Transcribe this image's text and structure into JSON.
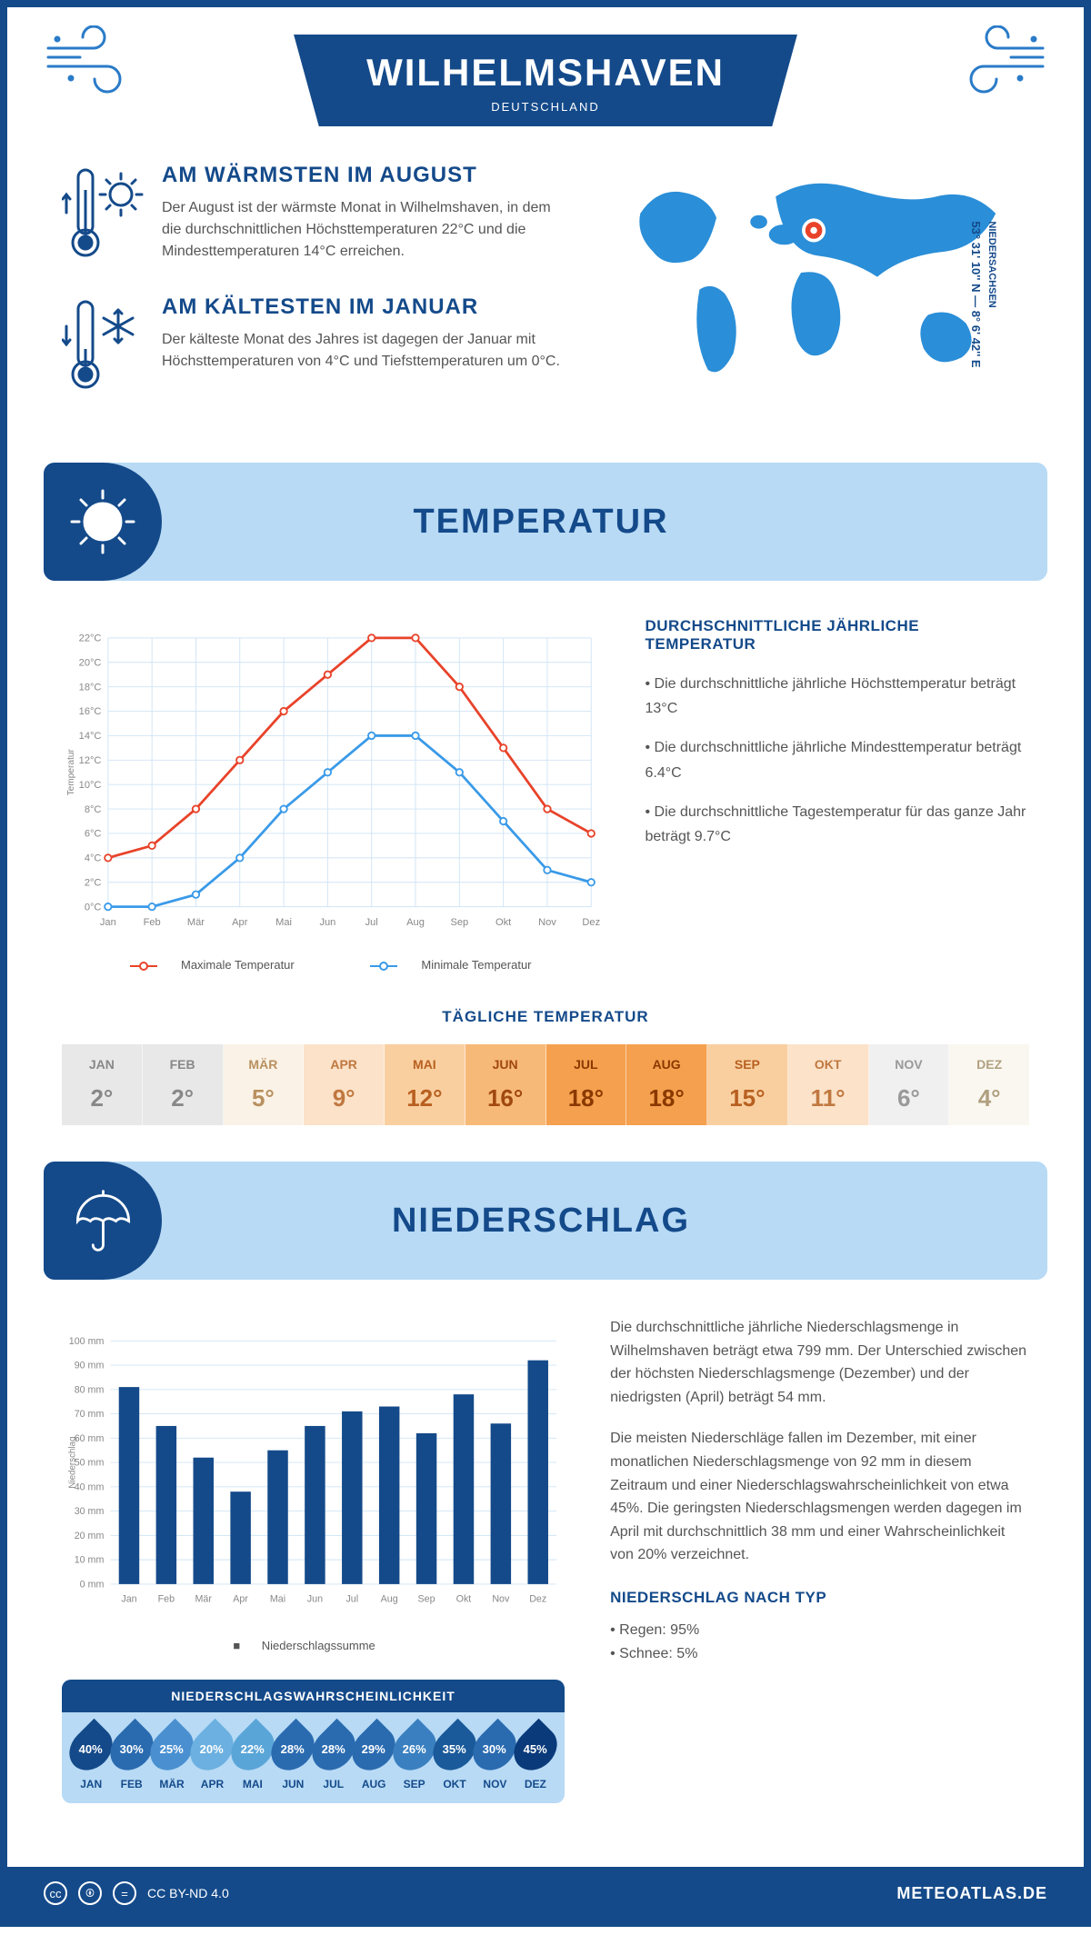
{
  "header": {
    "title": "WILHELMSHAVEN",
    "subtitle": "DEUTSCHLAND"
  },
  "location": {
    "region": "NIEDERSACHSEN",
    "coords": "53° 31' 10'' N — 8° 6' 42'' E",
    "marker_color": "#e8432a"
  },
  "facts": {
    "warm": {
      "title": "AM WÄRMSTEN IM AUGUST",
      "text": "Der August ist der wärmste Monat in Wilhelmshaven, in dem die durchschnittlichen Höchsttemperaturen 22°C und die Mindesttemperaturen 14°C erreichen."
    },
    "cold": {
      "title": "AM KÄLTESTEN IM JANUAR",
      "text": "Der kälteste Monat des Jahres ist dagegen der Januar mit Höchsttemperaturen von 4°C und Tiefsttemperaturen um 0°C."
    }
  },
  "temp_section": {
    "banner": "TEMPERATUR",
    "info_title": "DURCHSCHNITTLICHE JÄHRLICHE TEMPERATUR",
    "bullets": [
      "• Die durchschnittliche jährliche Höchsttemperatur beträgt 13°C",
      "• Die durchschnittliche jährliche Mindesttemperatur beträgt 6.4°C",
      "• Die durchschnittliche Tagestemperatur für das ganze Jahr beträgt 9.7°C"
    ],
    "chart": {
      "type": "line",
      "months": [
        "Jan",
        "Feb",
        "Mär",
        "Apr",
        "Mai",
        "Jun",
        "Jul",
        "Aug",
        "Sep",
        "Okt",
        "Nov",
        "Dez"
      ],
      "max_values": [
        4,
        5,
        8,
        12,
        16,
        19,
        22,
        22,
        18,
        13,
        8,
        6
      ],
      "min_values": [
        0,
        0,
        1,
        4,
        8,
        11,
        14,
        14,
        11,
        7,
        3,
        2
      ],
      "max_color": "#e8432a",
      "min_color": "#3a9ae8",
      "ylim": [
        0,
        22
      ],
      "ytick_step": 2,
      "y_unit": "°C",
      "y_axis_label": "Temperatur",
      "grid_color": "#d0e4f5",
      "line_width": 3,
      "marker_radius": 4,
      "legend_max": "Maximale Temperatur",
      "legend_min": "Minimale Temperatur"
    },
    "daily": {
      "title": "TÄGLICHE TEMPERATUR",
      "months": [
        "JAN",
        "FEB",
        "MÄR",
        "APR",
        "MAI",
        "JUN",
        "JUL",
        "AUG",
        "SEP",
        "OKT",
        "NOV",
        "DEZ"
      ],
      "values": [
        "2°",
        "2°",
        "5°",
        "9°",
        "12°",
        "16°",
        "18°",
        "18°",
        "15°",
        "11°",
        "6°",
        "4°"
      ],
      "cell_bg": [
        "#e8e8e8",
        "#e8e8e8",
        "#faf2e6",
        "#fbe2c9",
        "#f9cfa0",
        "#f7b977",
        "#f5a04e",
        "#f5a04e",
        "#f9cfa0",
        "#fbe2c9",
        "#f0f0f0",
        "#faf7f0"
      ],
      "cell_fg": [
        "#888",
        "#888",
        "#b89060",
        "#c07840",
        "#b86020",
        "#a04810",
        "#8a3800",
        "#8a3800",
        "#b86020",
        "#c07840",
        "#999",
        "#b0a080"
      ]
    }
  },
  "precip_section": {
    "banner": "NIEDERSCHLAG",
    "text1": "Die durchschnittliche jährliche Niederschlagsmenge in Wilhelmshaven beträgt etwa 799 mm. Der Unterschied zwischen der höchsten Niederschlagsmenge (Dezember) und der niedrigsten (April) beträgt 54 mm.",
    "text2": "Die meisten Niederschläge fallen im Dezember, mit einer monatlichen Niederschlagsmenge von 92 mm in diesem Zeitraum und einer Niederschlagswahrscheinlichkeit von etwa 45%. Die geringsten Niederschlagsmengen werden dagegen im April mit durchschnittlich 38 mm und einer Wahrscheinlichkeit von 20% verzeichnet.",
    "by_type_title": "NIEDERSCHLAG NACH TYP",
    "by_type": [
      "• Regen: 95%",
      "• Schnee: 5%"
    ],
    "chart": {
      "type": "bar",
      "months": [
        "Jan",
        "Feb",
        "Mär",
        "Apr",
        "Mai",
        "Jun",
        "Jul",
        "Aug",
        "Sep",
        "Okt",
        "Nov",
        "Dez"
      ],
      "values": [
        81,
        65,
        52,
        38,
        55,
        65,
        71,
        73,
        62,
        78,
        66,
        92
      ],
      "bar_color": "#144a8a",
      "ylim": [
        0,
        100
      ],
      "ytick_step": 10,
      "y_unit": " mm",
      "y_axis_label": "Niederschlag",
      "grid_color": "#d0e4f5",
      "bar_width": 0.55,
      "legend": "Niederschlagssumme"
    },
    "prob": {
      "title": "NIEDERSCHLAGSWAHRSCHEINLICHKEIT",
      "months": [
        "JAN",
        "FEB",
        "MÄR",
        "APR",
        "MAI",
        "JUN",
        "JUL",
        "AUG",
        "SEP",
        "OKT",
        "NOV",
        "DEZ"
      ],
      "values": [
        "40%",
        "30%",
        "25%",
        "20%",
        "22%",
        "28%",
        "28%",
        "29%",
        "26%",
        "35%",
        "30%",
        "45%"
      ],
      "drop_colors": [
        "#144a8a",
        "#2a6bb0",
        "#4a90d0",
        "#6bb0e0",
        "#5aa5d8",
        "#2a6bb0",
        "#2a6bb0",
        "#2a6bb0",
        "#3a80c0",
        "#1a5a9a",
        "#2a6bb0",
        "#0a3a7a"
      ]
    }
  },
  "footer": {
    "license": "CC BY-ND 4.0",
    "brand": "METEOATLAS.DE"
  },
  "colors": {
    "primary": "#144a8a",
    "banner_bg": "#b8daf5",
    "accent_blue": "#2a7bc8"
  }
}
